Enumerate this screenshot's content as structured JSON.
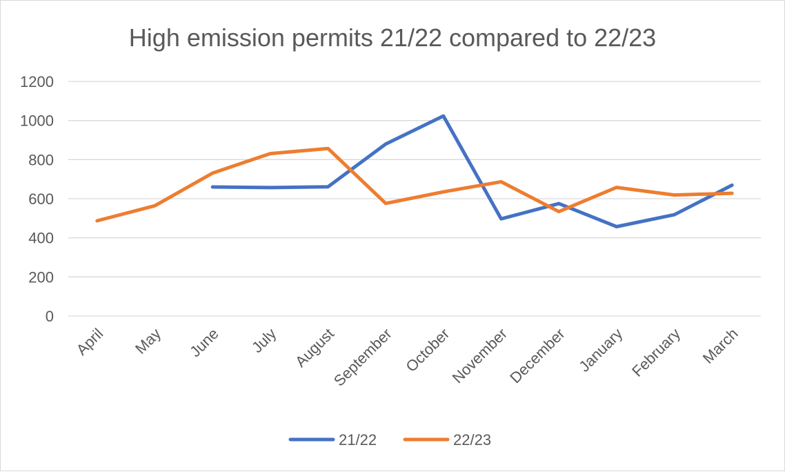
{
  "chart_data": {
    "type": "line",
    "title": "High emission permits 21/22 compared to 22/23",
    "categories": [
      "April",
      "May",
      "June",
      "July",
      "August",
      "September",
      "October",
      "November",
      "December",
      "January",
      "February",
      "March"
    ],
    "series": [
      {
        "name": "21/22",
        "color": "#4472c4",
        "values": [
          null,
          null,
          660,
          657,
          661,
          880,
          1023,
          497,
          575,
          457,
          518,
          669
        ]
      },
      {
        "name": "22/23",
        "color": "#ed7d31",
        "values": [
          487,
          564,
          731,
          831,
          857,
          576,
          635,
          687,
          534,
          658,
          619,
          628
        ]
      }
    ],
    "ylim": [
      0,
      1200
    ],
    "yticks": [
      0,
      200,
      400,
      600,
      800,
      1000,
      1200
    ],
    "grid": true,
    "legend_position": "bottom"
  }
}
